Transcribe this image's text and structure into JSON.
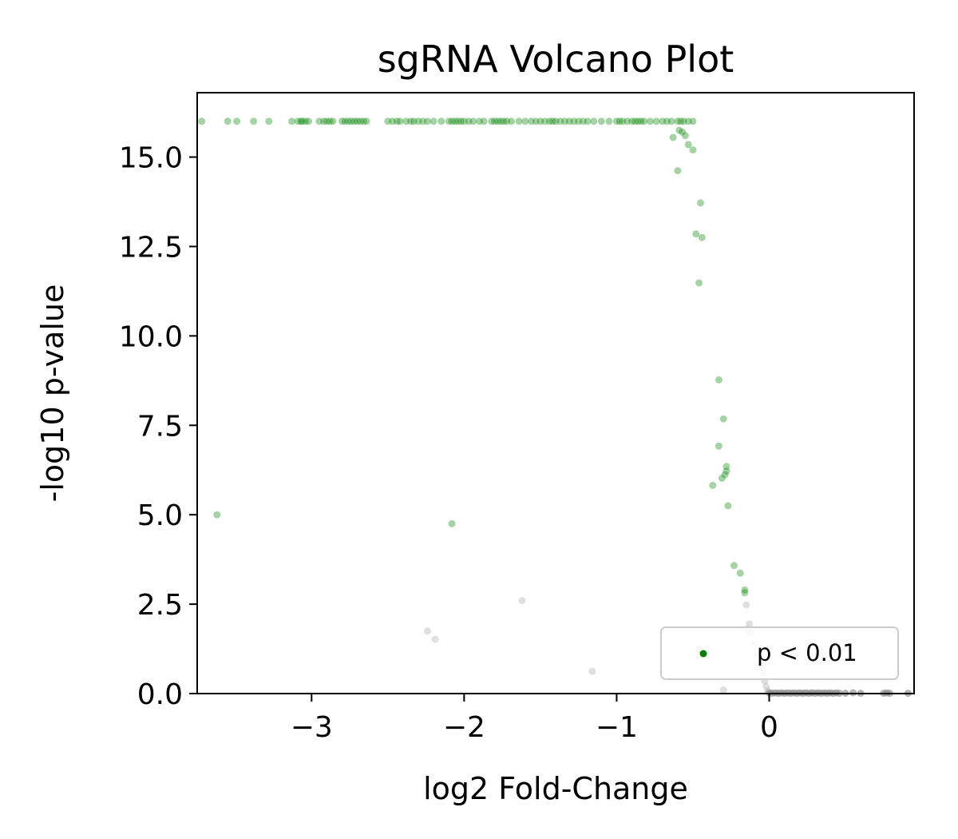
{
  "chart_data": {
    "type": "scatter",
    "title": "sgRNA Volcano Plot",
    "xlabel": "log2 Fold-Change",
    "ylabel": "-log10 p-value",
    "xlim": [
      -3.75,
      0.95
    ],
    "ylim": [
      0,
      16.8
    ],
    "x_ticks": [
      -3,
      -2,
      -1,
      0
    ],
    "x_tick_labels": [
      "−3",
      "−2",
      "−1",
      "0"
    ],
    "y_ticks": [
      0,
      2.5,
      5,
      7.5,
      10,
      12.5,
      15
    ],
    "y_tick_labels": [
      "0.0",
      "2.5",
      "5.0",
      "7.5",
      "10.0",
      "12.5",
      "15.0"
    ],
    "grid": false,
    "legend": {
      "position": "lower-right",
      "entries": [
        "p < 0.01"
      ]
    },
    "colors": {
      "significant": "#008000",
      "not_significant": "#b0b0b0",
      "near_zero": "#808080"
    },
    "series": [
      {
        "name": "p < 0.01",
        "color": "#008000",
        "x": [
          -3.72,
          -3.55,
          -3.49,
          -3.38,
          -3.28,
          -3.13,
          -3.09,
          -3.07,
          -3.06,
          -3.04,
          -3.02,
          -2.95,
          -2.92,
          -2.9,
          -2.88,
          -2.86,
          -2.8,
          -2.78,
          -2.76,
          -2.74,
          -2.72,
          -2.7,
          -2.68,
          -2.66,
          -2.64,
          -2.5,
          -2.47,
          -2.44,
          -2.42,
          -2.38,
          -2.35,
          -2.33,
          -2.3,
          -2.27,
          -2.24,
          -2.2,
          -2.15,
          -2.1,
          -2.08,
          -2.06,
          -2.04,
          -2.02,
          -2.0,
          -1.97,
          -1.94,
          -1.9,
          -1.87,
          -1.82,
          -1.8,
          -1.78,
          -1.76,
          -1.74,
          -1.72,
          -1.69,
          -1.64,
          -1.6,
          -1.56,
          -1.53,
          -1.5,
          -1.47,
          -1.44,
          -1.42,
          -1.4,
          -1.37,
          -1.34,
          -1.31,
          -1.28,
          -1.25,
          -1.22,
          -1.19,
          -1.15,
          -1.1,
          -1.05,
          -1.0,
          -0.98,
          -0.96,
          -0.93,
          -0.9,
          -0.88,
          -0.86,
          -0.84,
          -0.82,
          -0.78,
          -0.74,
          -0.7,
          -0.67,
          -0.64,
          -0.6,
          -0.58,
          -0.56,
          -0.53,
          -0.5,
          -0.59,
          -0.57,
          -0.63,
          -0.55,
          -0.53,
          -0.5,
          -0.6,
          -0.45,
          -0.48,
          -0.44,
          -0.46,
          -0.33,
          -0.3,
          -0.33,
          -0.28,
          -0.28,
          -0.29,
          -0.31,
          -0.37,
          -0.27,
          -0.23,
          -0.19,
          -0.16,
          -0.16,
          -3.62,
          -2.08
        ],
        "y": [
          16,
          16,
          16,
          16,
          16,
          16,
          16,
          16,
          16,
          16,
          16,
          16,
          16,
          16,
          16,
          16,
          16,
          16,
          16,
          16,
          16,
          16,
          16,
          16,
          16,
          16,
          16,
          16,
          16,
          16,
          16,
          16,
          16,
          16,
          16,
          16,
          16,
          16,
          16,
          16,
          16,
          16,
          16,
          16,
          16,
          16,
          16,
          16,
          16,
          16,
          16,
          16,
          16,
          16,
          16,
          16,
          16,
          16,
          16,
          16,
          16,
          16,
          16,
          16,
          16,
          16,
          16,
          16,
          16,
          16,
          16,
          16,
          16,
          16,
          16,
          16,
          16,
          16,
          16,
          16,
          16,
          16,
          16,
          16,
          16,
          16,
          16,
          16,
          16,
          16,
          16,
          16,
          15.75,
          15.7,
          15.55,
          15.6,
          15.35,
          15.2,
          14.62,
          13.72,
          12.85,
          12.75,
          11.48,
          8.77,
          7.68,
          6.92,
          6.35,
          6.22,
          6.12,
          6.02,
          5.82,
          5.25,
          3.58,
          3.37,
          2.9,
          2.82,
          5.0,
          4.75
        ]
      },
      {
        "name": "",
        "color": "#b0b0b0",
        "x": [
          -2.24,
          -2.19,
          -1.62,
          -1.16,
          -0.3,
          -0.15,
          -0.13,
          -0.14,
          -0.12,
          -0.1,
          -0.08,
          -0.06,
          -0.04,
          -0.03,
          -0.02,
          -0.01
        ],
        "y": [
          1.75,
          1.52,
          2.6,
          0.62,
          0.1,
          2.48,
          1.95,
          1.8,
          1.7,
          1.4,
          1.1,
          0.8,
          0.55,
          0.35,
          0.2,
          0.08
        ]
      },
      {
        "name": "",
        "color": "#808080",
        "x": [
          0.0,
          0.02,
          0.04,
          0.06,
          0.08,
          0.1,
          0.12,
          0.14,
          0.16,
          0.18,
          0.2,
          0.22,
          0.24,
          0.26,
          0.28,
          0.3,
          0.32,
          0.34,
          0.36,
          0.38,
          0.4,
          0.42,
          0.44,
          0.46,
          0.5,
          0.55,
          0.6,
          0.75,
          0.77,
          0.79,
          0.91
        ],
        "y": [
          0.02,
          0.01,
          0.02,
          0.01,
          0.02,
          0.01,
          0.02,
          0.01,
          0.02,
          0.01,
          0.02,
          0.01,
          0.02,
          0.01,
          0.02,
          0.01,
          0.02,
          0.01,
          0.02,
          0.01,
          0.02,
          0.01,
          0.02,
          0.01,
          0.01,
          0.02,
          0.01,
          0.01,
          0.02,
          0.01,
          0.01
        ]
      }
    ]
  }
}
